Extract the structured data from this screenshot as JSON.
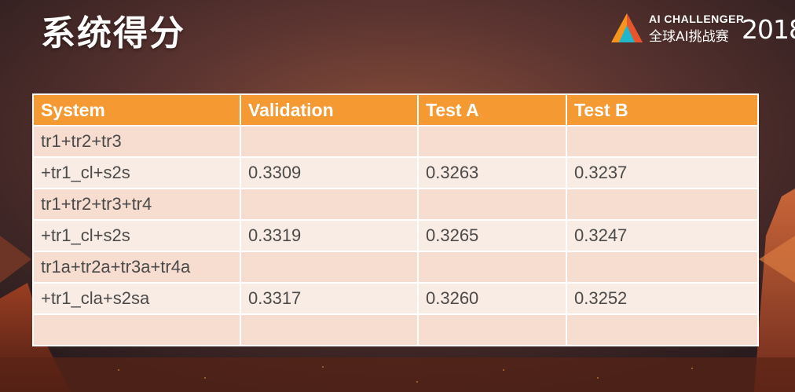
{
  "slide": {
    "title": "系统得分"
  },
  "logo": {
    "line1": "AI CHALLENGER",
    "line2": "全球AI挑战赛",
    "year": "2018",
    "brand_colors": [
      "#f7941d",
      "#e8542b",
      "#1fb7c9"
    ]
  },
  "table": {
    "headers": [
      "System",
      "Validation",
      "Test A",
      "Test B"
    ],
    "rows": [
      {
        "system": "tr1+tr2+tr3",
        "validation": "",
        "test_a": "",
        "test_b": "",
        "indent": false
      },
      {
        "system": "+tr1_cl+s2s",
        "validation": "0.3309",
        "test_a": "0.3263",
        "test_b": "0.3237",
        "indent": true
      },
      {
        "system": "tr1+tr2+tr3+tr4",
        "validation": "",
        "test_a": "",
        "test_b": "",
        "indent": false
      },
      {
        "system": "+tr1_cl+s2s",
        "validation": "0.3319",
        "test_a": "0.3265",
        "test_b": "0.3247",
        "indent": true
      },
      {
        "system": "tr1a+tr2a+tr3a+tr4a",
        "validation": "",
        "test_a": "",
        "test_b": "",
        "indent": false
      },
      {
        "system": "+tr1_cla+s2sa",
        "validation": "0.3317",
        "test_a": "0.3260",
        "test_b": "0.3252",
        "indent": true
      },
      {
        "system": "",
        "validation": "",
        "test_a": "",
        "test_b": "",
        "indent": false
      }
    ],
    "colors": {
      "header_bg": "#f59a32",
      "row_odd": "#f7dcd0",
      "row_even": "#f9ece4"
    }
  }
}
